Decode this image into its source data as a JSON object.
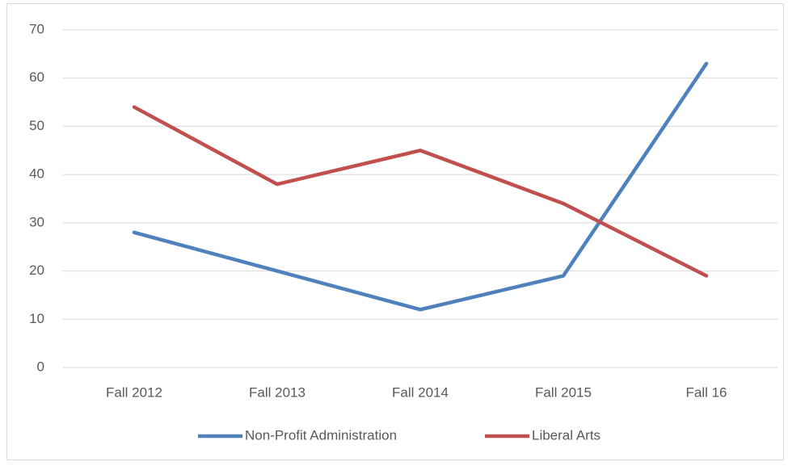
{
  "chart_data": {
    "type": "line",
    "categories": [
      "Fall 2012",
      "Fall 2013",
      "Fall 2014",
      "Fall 2015",
      "Fall 16"
    ],
    "series": [
      {
        "name": "Non-Profit Administration",
        "color": "#4f81bd",
        "values": [
          28,
          20,
          12,
          19,
          63
        ]
      },
      {
        "name": "Liberal Arts",
        "color": "#c0504d",
        "values": [
          54,
          38,
          45,
          34,
          19
        ]
      }
    ],
    "ylim": [
      0,
      70
    ],
    "yticks": [
      0,
      10,
      20,
      30,
      40,
      50,
      60,
      70
    ],
    "grid": true,
    "legend": "bottom"
  }
}
